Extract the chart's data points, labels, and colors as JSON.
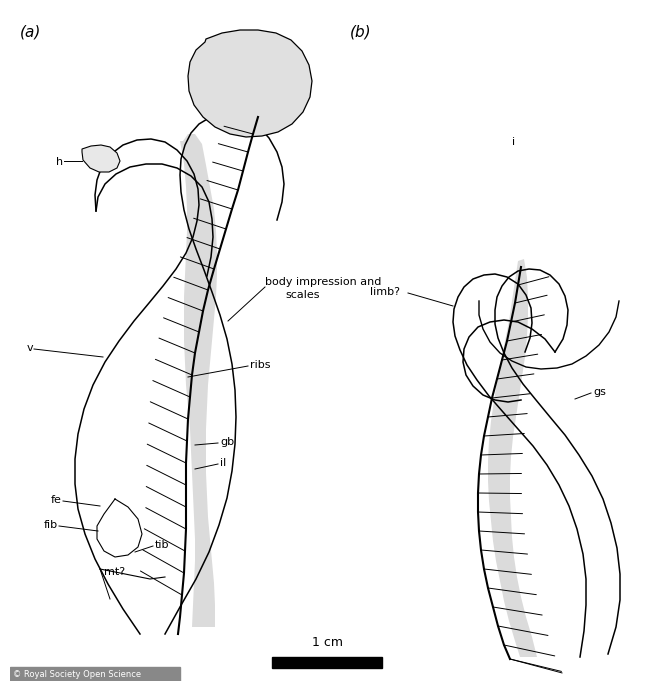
{
  "title_a": "(a)",
  "title_b": "(b)",
  "scale_label": "1 cm",
  "copyright": "© Royal Society Open Science",
  "background_color": "#ffffff",
  "fig_width": 6.34,
  "fig_height": 6.72,
  "dpi": 100
}
